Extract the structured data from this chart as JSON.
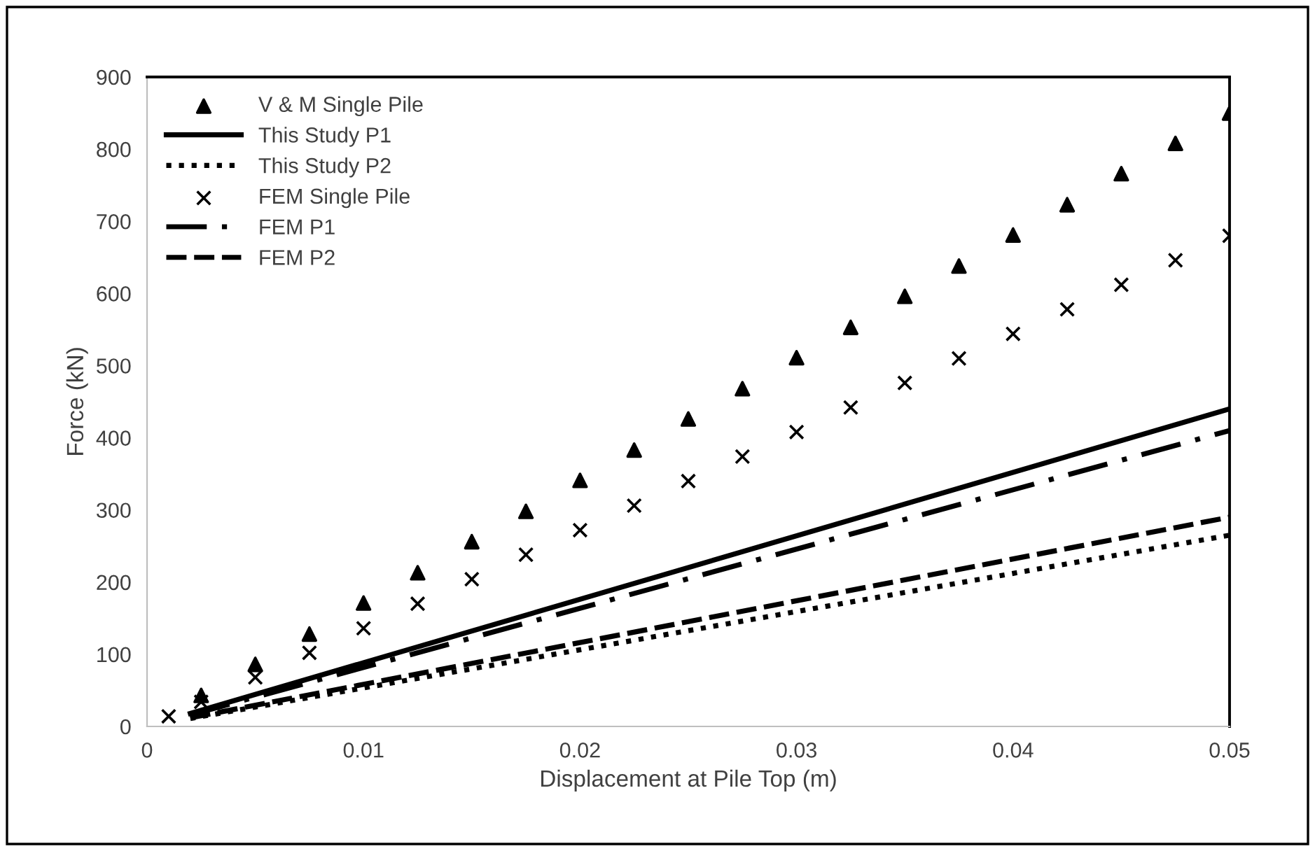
{
  "chart_data": {
    "type": "scatter",
    "xlabel": "Displacement at Pile Top (m)",
    "ylabel": "Force (kN)",
    "xlim": [
      0,
      0.05
    ],
    "ylim": [
      0,
      900
    ],
    "xticks": [
      0,
      0.01,
      0.02,
      0.03,
      0.04,
      0.05
    ],
    "yticks": [
      0,
      100,
      200,
      300,
      400,
      500,
      600,
      700,
      800,
      900
    ],
    "grid": false,
    "legend": "top left",
    "series": [
      {
        "name": "V & M Single Pile",
        "marker": "triangle",
        "color": "#000000",
        "x": [
          0.0025,
          0.005,
          0.0075,
          0.01,
          0.0125,
          0.015,
          0.0175,
          0.02,
          0.0225,
          0.025,
          0.0275,
          0.03,
          0.0325,
          0.035,
          0.0375,
          0.04,
          0.0425,
          0.045,
          0.0475,
          0.05
        ],
        "values": [
          43,
          86,
          128,
          171,
          213,
          256,
          298,
          341,
          383,
          426,
          468,
          511,
          553,
          596,
          638,
          681,
          723,
          766,
          808,
          850
        ]
      },
      {
        "name": "This Study P1",
        "type": "line",
        "line_style": "solid",
        "color": "#000000",
        "x": [
          0.002,
          0.05
        ],
        "values": [
          18,
          440
        ]
      },
      {
        "name": "This Study P2",
        "type": "line",
        "line_style": "dotted",
        "color": "#000000",
        "x": [
          0.002,
          0.05
        ],
        "values": [
          11,
          265
        ]
      },
      {
        "name": "FEM Single Pile",
        "marker": "cross",
        "color": "#000000",
        "x": [
          0.001,
          0.0025,
          0.005,
          0.0075,
          0.01,
          0.0125,
          0.015,
          0.0175,
          0.02,
          0.0225,
          0.025,
          0.0275,
          0.03,
          0.0325,
          0.035,
          0.0375,
          0.04,
          0.0425,
          0.045,
          0.0475,
          0.05
        ],
        "values": [
          14,
          34,
          68,
          102,
          136,
          170,
          204,
          238,
          272,
          306,
          340,
          374,
          408,
          442,
          476,
          510,
          544,
          578,
          612,
          646,
          680
        ]
      },
      {
        "name": "FEM P1",
        "type": "line",
        "line_style": "dashdot",
        "color": "#000000",
        "x": [
          0.002,
          0.05
        ],
        "values": [
          16,
          410
        ]
      },
      {
        "name": "FEM P2",
        "type": "line",
        "line_style": "dashed",
        "color": "#000000",
        "x": [
          0.002,
          0.05
        ],
        "values": [
          12,
          290
        ]
      }
    ]
  }
}
